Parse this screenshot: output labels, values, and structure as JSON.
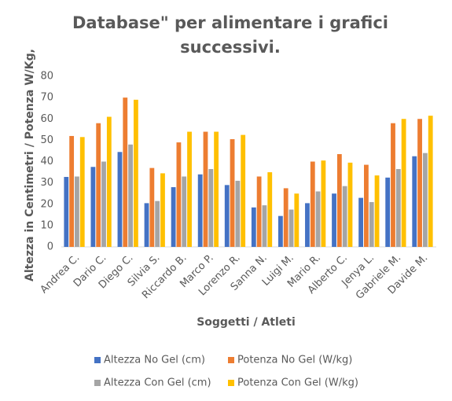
{
  "chart_data": {
    "type": "bar",
    "title": [
      "Database\" per alimentare i grafici",
      "successivi."
    ],
    "x_label": "Soggetti / Atleti",
    "y_label": "Altezza in Centimetri / Potenza W/Kg,",
    "categories": [
      "Andrea C.",
      "Dario C.",
      "Diego C.",
      "Silvia S.",
      "Riccardo B.",
      "Marco P.",
      "Lorenzo R.",
      "Sanna N.",
      "Luigi M.",
      "Mario R.",
      "Alberto C.",
      "Jenya L.",
      "Gabriele M.",
      "Davide M."
    ],
    "series": [
      {
        "name": "Altezza No Gel (cm)",
        "color": "#4472c4",
        "values": [
          32.8,
          37.5,
          44.5,
          20.5,
          28,
          34,
          29,
          18.5,
          14.5,
          20.5,
          25,
          23,
          32.5,
          42.5
        ]
      },
      {
        "name": "Potenza No Gel (W/kg)",
        "color": "#ed7d31",
        "values": [
          52,
          58,
          70,
          37,
          49,
          54,
          50.5,
          33,
          27.5,
          40,
          43.5,
          38.5,
          58,
          60
        ]
      },
      {
        "name": "Altezza Con Gel (cm)",
        "color": "#a5a5a5",
        "values": [
          33,
          40,
          48,
          21.5,
          33,
          36.5,
          31,
          19.5,
          17.5,
          26,
          28.5,
          21,
          36.5,
          44
        ]
      },
      {
        "name": "Potenza Con Gel (W/kg)",
        "color": "#ffc000",
        "values": [
          51.5,
          61,
          69,
          34.5,
          54,
          54,
          52.5,
          35,
          25,
          40.5,
          39.5,
          33.5,
          60,
          61.5
        ]
      }
    ],
    "ylim": [
      0,
      80
    ],
    "yticks": [
      0,
      10,
      20,
      30,
      40,
      50,
      60,
      70,
      80
    ],
    "grid": false
  }
}
